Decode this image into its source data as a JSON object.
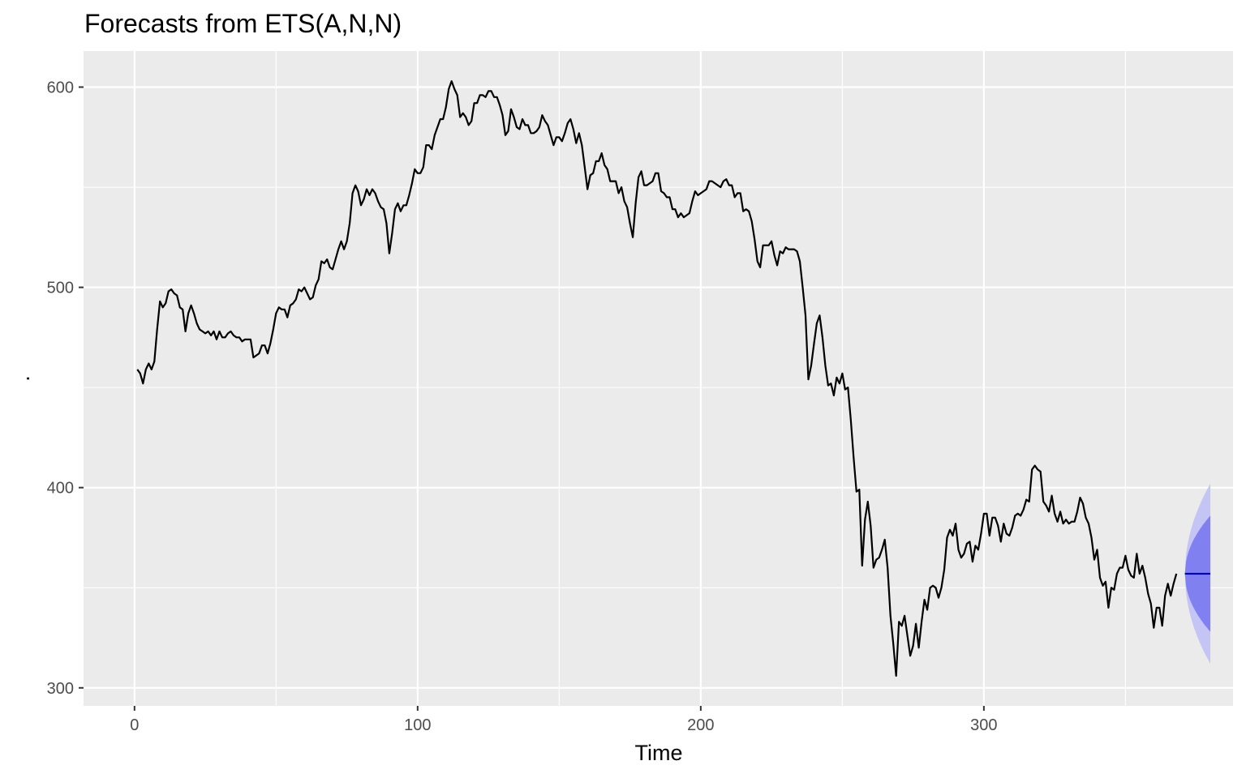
{
  "chart_data": {
    "type": "line",
    "title": "Forecasts from ETS(A,N,N)",
    "xlabel": "Time",
    "ylabel": ".",
    "xlim": [
      -18,
      388
    ],
    "ylim": [
      291,
      618
    ],
    "x_ticks": [
      0,
      100,
      200,
      300
    ],
    "x_minor_ticks": [
      50,
      150,
      250,
      350
    ],
    "y_ticks": [
      300,
      400,
      500,
      600
    ],
    "y_minor_ticks": [
      350,
      450,
      550
    ],
    "grid": true,
    "colors": {
      "panel": "#ebebeb",
      "grid": "#ffffff",
      "series": "#000000",
      "forecast": "#0000cc",
      "band80": "#8080f0",
      "band95": "#c5c5f5"
    },
    "series": [
      {
        "values": [
          459,
          457,
          452,
          459,
          462,
          459,
          463,
          479,
          493,
          490,
          492,
          498,
          499,
          497,
          496,
          490,
          489,
          478,
          487,
          491,
          487,
          482,
          479,
          478,
          477,
          478,
          476,
          478,
          474,
          478,
          475,
          475,
          477,
          478,
          476,
          475,
          475,
          473,
          474,
          474,
          474,
          465,
          466,
          467,
          471,
          471,
          467,
          472,
          479,
          487,
          490,
          489,
          489,
          485,
          491,
          492,
          494,
          499,
          498,
          500,
          497,
          494,
          495,
          501,
          504,
          513,
          512,
          514,
          510,
          509,
          514,
          519,
          523,
          519,
          523,
          532,
          547,
          551,
          548,
          541,
          544,
          549,
          546,
          549,
          547,
          543,
          540,
          539,
          532,
          517,
          527,
          539,
          542,
          538,
          541,
          541,
          546,
          552,
          559,
          557,
          557,
          560,
          571,
          571,
          569,
          576,
          580,
          584,
          584,
          590,
          599,
          603,
          599,
          596,
          585,
          587,
          585,
          581,
          583,
          592,
          592,
          596,
          596,
          595,
          598,
          598,
          595,
          595,
          591,
          586,
          576,
          578,
          589,
          585,
          580,
          579,
          584,
          581,
          581,
          577,
          577,
          578,
          580,
          586,
          583,
          581,
          576,
          571,
          575,
          575,
          573,
          577,
          582,
          584,
          579,
          572,
          577,
          571,
          560,
          549,
          556,
          557,
          563,
          563,
          567,
          561,
          559,
          553,
          553,
          553,
          547,
          550,
          543,
          540,
          532,
          525,
          542,
          555,
          558,
          551,
          551,
          552,
          553,
          557,
          557,
          548,
          547,
          545,
          545,
          539,
          539,
          535,
          537,
          535,
          536,
          537,
          543,
          548,
          546,
          547,
          548,
          549,
          553,
          553,
          552,
          551,
          550,
          553,
          554,
          551,
          551,
          545,
          547,
          547,
          538,
          539,
          538,
          533,
          524,
          513,
          510,
          521,
          521,
          521,
          523,
          516,
          511,
          518,
          517,
          520,
          519,
          519,
          519,
          518,
          513,
          500,
          486,
          454,
          461,
          472,
          482,
          486,
          475,
          461,
          451,
          452,
          446,
          455,
          452,
          457,
          449,
          450,
          434,
          415,
          398,
          399,
          361,
          384,
          393,
          381,
          360,
          364,
          365,
          369,
          374,
          360,
          336,
          322,
          306,
          333,
          331,
          336,
          326,
          316,
          321,
          332,
          320,
          333,
          344,
          339,
          350,
          351,
          350,
          345,
          350,
          359,
          375,
          379,
          376,
          382,
          369,
          365,
          367,
          372,
          373,
          363,
          371,
          369,
          377,
          387,
          387,
          376,
          385,
          385,
          381,
          373,
          382,
          377,
          376,
          380,
          386,
          387,
          386,
          389,
          394,
          393,
          409,
          411,
          409,
          408,
          393,
          391,
          388,
          396,
          387,
          383,
          388,
          382,
          384,
          382,
          383,
          383,
          388,
          395,
          392,
          385,
          382,
          375,
          364,
          369,
          355,
          351,
          353,
          340,
          350,
          349,
          357,
          360,
          360,
          366,
          359,
          356,
          355,
          367,
          357,
          361,
          355,
          347,
          342,
          330,
          340,
          340,
          331,
          346,
          352,
          346,
          352,
          357
        ]
      }
    ],
    "forecast": {
      "x_start": 371,
      "x_end": 380,
      "point": 357,
      "lo80_end": 328,
      "hi80_end": 386,
      "lo95_end": 312,
      "hi95_end": 402
    }
  }
}
